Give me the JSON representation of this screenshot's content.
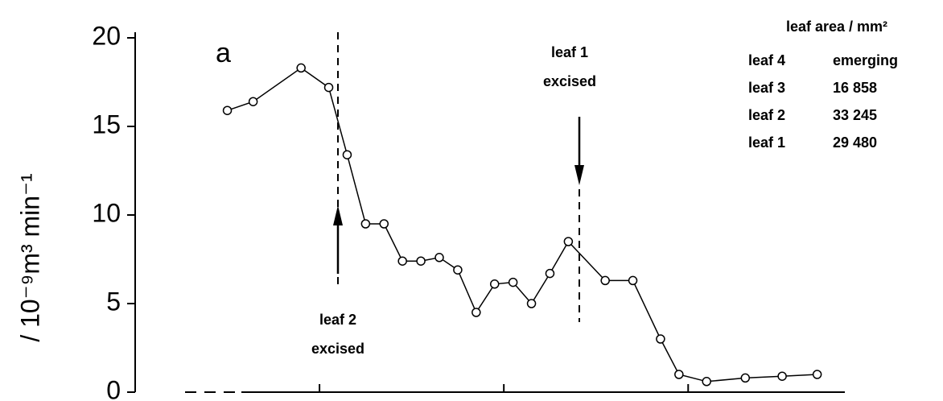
{
  "chart_data": {
    "type": "line",
    "panel_label": "a",
    "ylabel": "/ 10⁻⁹m³ min⁻¹",
    "x": [
      5.0,
      6.4,
      9.0,
      10.5,
      11.5,
      12.5,
      13.5,
      14.5,
      15.5,
      16.5,
      17.5,
      18.5,
      19.5,
      20.5,
      21.5,
      22.5,
      23.5,
      25.5,
      27.0,
      28.5,
      29.5,
      31.0,
      33.1,
      35.1,
      37.0
    ],
    "series": [
      {
        "color": "#000000",
        "values": [
          15.9,
          16.4,
          18.3,
          17.2,
          13.4,
          9.5,
          9.5,
          7.4,
          7.4,
          7.6,
          6.9,
          4.5,
          6.1,
          6.2,
          5.0,
          6.7,
          8.5,
          6.3,
          6.3,
          3.0,
          1.0,
          0.6,
          0.8,
          0.9,
          1.0
        ]
      }
    ],
    "xlim": [
      0,
      38.5
    ],
    "xticks": [
      10,
      20,
      30
    ],
    "ylim": [
      0,
      20
    ],
    "yticks": [
      0,
      5,
      10,
      15,
      20
    ],
    "annotations": [
      {
        "lines": [
          "leaf 2",
          "excised"
        ]
      },
      {
        "lines": [
          "leaf 1",
          "excised"
        ]
      }
    ],
    "legend_table": {
      "title": "leaf area / mm²",
      "rows": [
        [
          "leaf 4",
          "emerging"
        ],
        [
          "leaf 3",
          "16 858"
        ],
        [
          "leaf 2",
          "33 245"
        ],
        [
          "leaf 1",
          "29 480"
        ]
      ]
    }
  }
}
